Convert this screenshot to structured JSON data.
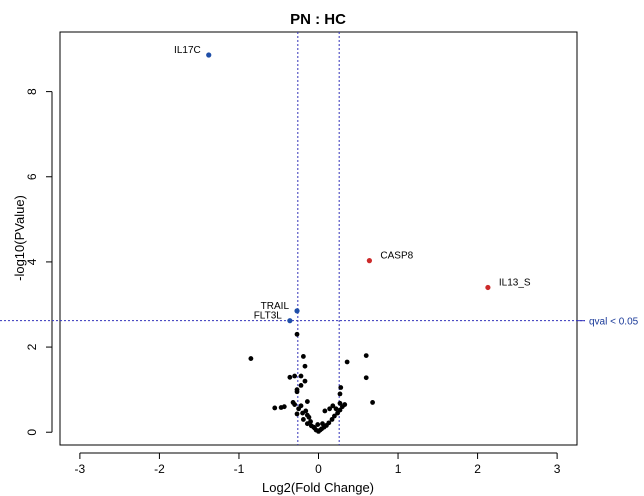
{
  "chart_data": {
    "type": "scatter",
    "title": "PN : HC",
    "xlabel": "Log2(Fold Change)",
    "ylabel": "-log10(PValue)",
    "xlim": [
      -3.25,
      3.25
    ],
    "ylim": [
      -0.3,
      9.4
    ],
    "x_ticks": [
      -3,
      -2,
      -1,
      0,
      1,
      2,
      3
    ],
    "y_ticks": [
      0,
      2,
      4,
      6,
      8
    ],
    "grid": false,
    "colors": {
      "down": "#1f4fa8",
      "up": "#cc2a2a",
      "ns": "#000000",
      "ref": "#3333bb"
    },
    "reference_lines": {
      "vertical": [
        -0.26,
        0.26
      ],
      "horizontal": {
        "y": 2.62,
        "label": "qval < 0.05"
      }
    },
    "labeled_points": [
      {
        "label": "IL17C",
        "x": -1.38,
        "y": 8.86,
        "group": "down",
        "label_side": "left"
      },
      {
        "label": "TRAIL",
        "x": -0.27,
        "y": 2.85,
        "group": "down",
        "label_side": "left"
      },
      {
        "label": "FLT3L",
        "x": -0.36,
        "y": 2.62,
        "group": "down",
        "label_side": "left"
      },
      {
        "label": "CASP8",
        "x": 0.64,
        "y": 4.03,
        "group": "up",
        "label_side": "right"
      },
      {
        "label": "IL13_S",
        "x": 2.13,
        "y": 3.4,
        "group": "up",
        "label_side": "right"
      }
    ],
    "points": [
      {
        "x": -0.27,
        "y": 2.3
      },
      {
        "x": -0.85,
        "y": 1.73
      },
      {
        "x": -0.19,
        "y": 1.78
      },
      {
        "x": -0.17,
        "y": 1.55
      },
      {
        "x": -0.3,
        "y": 1.32
      },
      {
        "x": -0.22,
        "y": 1.32
      },
      {
        "x": -0.36,
        "y": 1.29
      },
      {
        "x": -0.17,
        "y": 1.2
      },
      {
        "x": -0.22,
        "y": 1.1
      },
      {
        "x": -0.27,
        "y": 1.0
      },
      {
        "x": -0.27,
        "y": 0.95
      },
      {
        "x": -0.14,
        "y": 0.72
      },
      {
        "x": -0.3,
        "y": 0.65
      },
      {
        "x": -0.22,
        "y": 0.62
      },
      {
        "x": -0.43,
        "y": 0.6
      },
      {
        "x": -0.47,
        "y": 0.58
      },
      {
        "x": -0.55,
        "y": 0.57
      },
      {
        "x": -0.25,
        "y": 0.55
      },
      {
        "x": -0.27,
        "y": 0.43
      },
      {
        "x": -0.2,
        "y": 0.45
      },
      {
        "x": -0.14,
        "y": 0.4
      },
      {
        "x": -0.12,
        "y": 0.35
      },
      {
        "x": -0.19,
        "y": 0.3
      },
      {
        "x": -0.1,
        "y": 0.25
      },
      {
        "x": -0.14,
        "y": 0.2
      },
      {
        "x": -0.09,
        "y": 0.15
      },
      {
        "x": -0.06,
        "y": 0.12
      },
      {
        "x": -0.03,
        "y": 0.05
      },
      {
        "x": 0.0,
        "y": 0.02
      },
      {
        "x": 0.02,
        "y": 0.05
      },
      {
        "x": 0.04,
        "y": 0.08
      },
      {
        "x": 0.07,
        "y": 0.12
      },
      {
        "x": 0.1,
        "y": 0.16
      },
      {
        "x": 0.13,
        "y": 0.22
      },
      {
        "x": 0.17,
        "y": 0.3
      },
      {
        "x": 0.2,
        "y": 0.38
      },
      {
        "x": 0.24,
        "y": 0.45
      },
      {
        "x": 0.27,
        "y": 0.52
      },
      {
        "x": 0.3,
        "y": 0.6
      },
      {
        "x": 0.33,
        "y": 0.65
      },
      {
        "x": 0.27,
        "y": 0.68
      },
      {
        "x": 0.22,
        "y": 0.55
      },
      {
        "x": 0.14,
        "y": 0.55
      },
      {
        "x": 0.08,
        "y": 0.5
      },
      {
        "x": 0.27,
        "y": 0.9
      },
      {
        "x": 0.28,
        "y": 1.05
      },
      {
        "x": 0.36,
        "y": 1.65
      },
      {
        "x": 0.6,
        "y": 1.8
      },
      {
        "x": 0.6,
        "y": 1.28
      },
      {
        "x": 0.68,
        "y": 0.7
      },
      {
        "x": -0.05,
        "y": 0.1
      },
      {
        "x": -0.01,
        "y": 0.18
      },
      {
        "x": 0.05,
        "y": 0.2
      },
      {
        "x": -0.16,
        "y": 0.5
      },
      {
        "x": -0.32,
        "y": 0.7
      },
      {
        "x": 0.18,
        "y": 0.62
      }
    ]
  }
}
